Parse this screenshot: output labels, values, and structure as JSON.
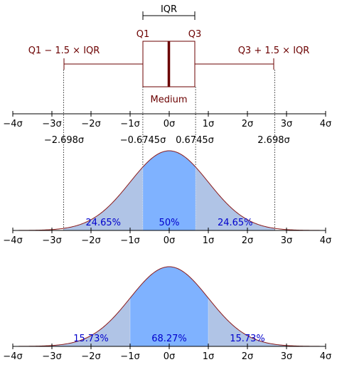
{
  "colors": {
    "dark_red": "#6b0000",
    "curve": "#8b1a1a",
    "tail_fill": "#b0c4e6",
    "center_fill": "#7fb2ff",
    "label_blue": "#0000cc",
    "axis": "#000000"
  },
  "boxplot": {
    "iqr_label": "IQR",
    "q1_label": "Q1",
    "q3_label": "Q3",
    "lower_whisker_label": "Q1 − 1.5 × IQR",
    "upper_whisker_label": "Q3 + 1.5 × IQR",
    "median_label": "Medium"
  },
  "sigma_values": [
    "−2.698σ",
    "−0.6745σ",
    "0.6745σ",
    "2.698σ"
  ],
  "tick_labels": [
    "−4σ",
    "−3σ",
    "−2σ",
    "−1σ",
    "0σ",
    "1σ",
    "2σ",
    "3σ",
    "4σ"
  ],
  "chart_data": [
    {
      "type": "boxplot",
      "distribution": "standard normal",
      "x_range": [
        -4,
        4
      ],
      "q1": -0.6745,
      "median": 0,
      "q3": 0.6745,
      "lower_whisker": -2.698,
      "upper_whisker": 2.698,
      "tick_labels": [
        "−4σ",
        "−3σ",
        "−2σ",
        "−1σ",
        "0σ",
        "1σ",
        "2σ",
        "3σ",
        "4σ"
      ]
    },
    {
      "type": "area",
      "distribution": "standard normal pdf",
      "x_range": [
        -4,
        4
      ],
      "regions": [
        {
          "from": -2.698,
          "to": -0.6745,
          "label": "24.65%",
          "value": 24.65
        },
        {
          "from": -0.6745,
          "to": 0.6745,
          "label": "50%",
          "value": 50
        },
        {
          "from": 0.6745,
          "to": 2.698,
          "label": "24.65%",
          "value": 24.65
        }
      ],
      "tick_labels": [
        "−4σ",
        "−3σ",
        "−2σ",
        "−1σ",
        "0σ",
        "1σ",
        "2σ",
        "3σ",
        "4σ"
      ]
    },
    {
      "type": "area",
      "distribution": "standard normal pdf",
      "x_range": [
        -4,
        4
      ],
      "regions": [
        {
          "from": -3,
          "to": -1,
          "label": "15.73%",
          "value": 15.73
        },
        {
          "from": -1,
          "to": 1,
          "label": "68.27%",
          "value": 68.27
        },
        {
          "from": 1,
          "to": 3,
          "label": "15.73%",
          "value": 15.73
        }
      ],
      "tick_labels": [
        "−4σ",
        "−3σ",
        "−2σ",
        "−1σ",
        "0σ",
        "1σ",
        "2σ",
        "3σ",
        "4σ"
      ]
    }
  ]
}
